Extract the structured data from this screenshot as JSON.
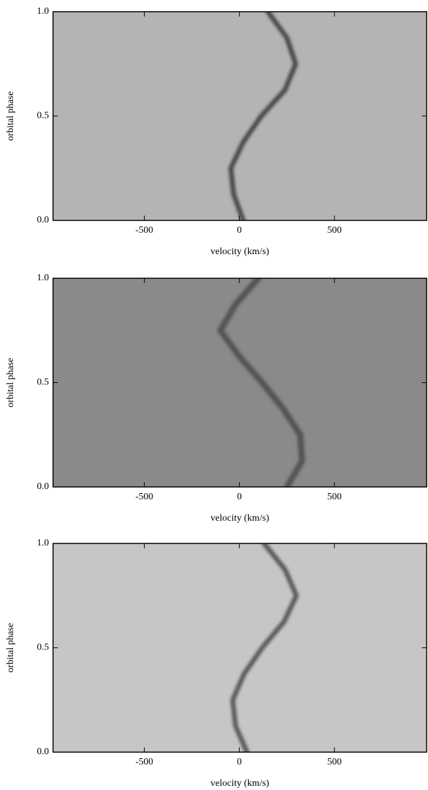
{
  "chart_data": [
    {
      "type": "line",
      "xlabel": "velocity (km/s)",
      "ylabel": "orbital phase",
      "background": "#b4b4b4",
      "color": "#4a4a4a",
      "line_width": 7,
      "xlim": [
        -980,
        985
      ],
      "ylim": [
        0,
        1
      ],
      "xticks": [
        -500,
        0,
        500
      ],
      "yticks": [
        {
          "value": 0,
          "label": "0.0"
        },
        {
          "value": 0.5,
          "label": "0.5"
        },
        {
          "value": 1,
          "label": "1.0"
        }
      ],
      "x": [
        20,
        -30,
        -45,
        20,
        115,
        240,
        296,
        250,
        150
      ],
      "values": [
        0,
        0.125,
        0.25,
        0.375,
        0.5,
        0.625,
        0.75,
        0.875,
        1
      ]
    },
    {
      "type": "line",
      "xlabel": "velocity (km/s)",
      "ylabel": "orbital phase",
      "background": "#8a8a8a",
      "color": "#555555",
      "line_width": 9,
      "xlim": [
        -980,
        985
      ],
      "ylim": [
        0,
        1
      ],
      "xticks": [
        -500,
        0,
        500
      ],
      "yticks": [
        {
          "value": 0,
          "label": "0.0"
        },
        {
          "value": 0.5,
          "label": "0.5"
        },
        {
          "value": 1,
          "label": "1.0"
        }
      ],
      "x": [
        250,
        330,
        320,
        230,
        120,
        0,
        -100,
        -20,
        100
      ],
      "values": [
        0,
        0.125,
        0.25,
        0.375,
        0.5,
        0.625,
        0.75,
        0.875,
        1
      ]
    },
    {
      "type": "line",
      "xlabel": "velocity (km/s)",
      "ylabel": "orbital phase",
      "background": "#c6c6c6",
      "color": "#5a5a5a",
      "line_width": 7,
      "xlim": [
        -980,
        985
      ],
      "ylim": [
        0,
        1
      ],
      "xticks": [
        -500,
        0,
        500
      ],
      "yticks": [
        {
          "value": 0,
          "label": "0.0"
        },
        {
          "value": 0.5,
          "label": "0.5"
        },
        {
          "value": 1,
          "label": "1.0"
        }
      ],
      "x": [
        40,
        -20,
        -35,
        25,
        120,
        235,
        300,
        240,
        130
      ],
      "values": [
        0,
        0.125,
        0.25,
        0.375,
        0.5,
        0.625,
        0.75,
        0.875,
        1
      ]
    }
  ]
}
